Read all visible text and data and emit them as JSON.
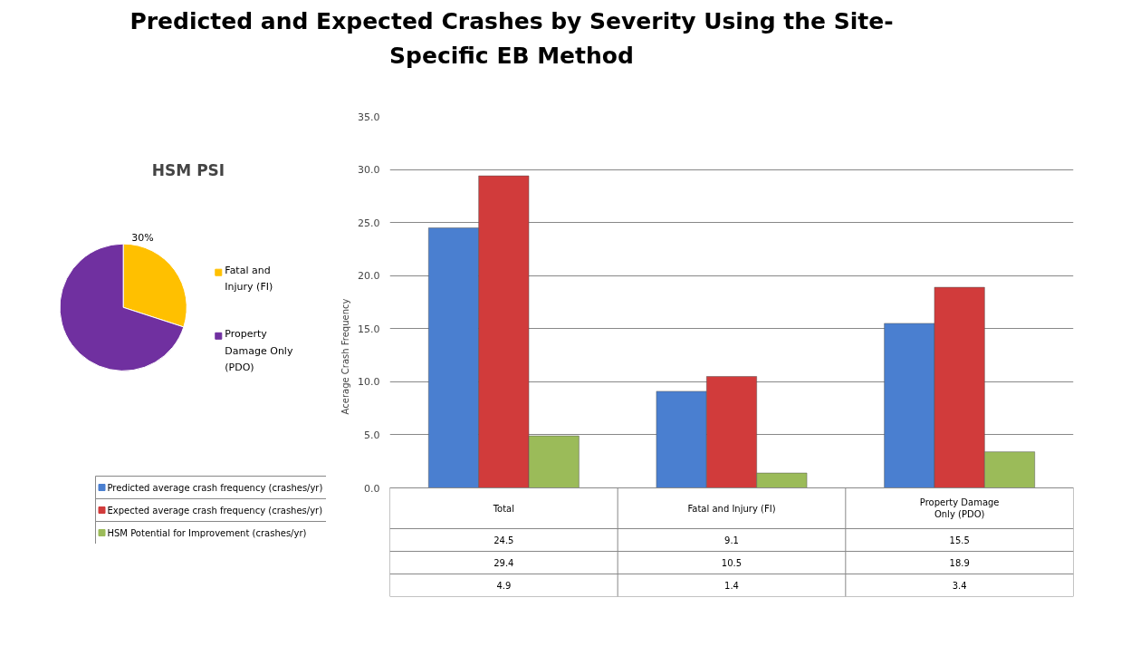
{
  "chart_data": [
    {
      "type": "pie",
      "title": "HSM PSI",
      "categories": [
        "Fatal and Injury (FI)",
        "Property Damage Only (PDO)"
      ],
      "values": [
        30,
        70
      ],
      "colors": [
        "#ffc000",
        "#7030a0"
      ],
      "value_labels": [
        "30%",
        null
      ],
      "legend": "right"
    },
    {
      "type": "bar",
      "title": "Predicted and Expected Crashes by Severity Using the Site-Specific EB Method",
      "ylabel": "Acerage Crash Frequency",
      "categories": [
        "Total",
        "Fatal and Injury (FI)",
        "Property Damage Only (PDO)"
      ],
      "series": [
        {
          "name": "Predicted average crash frequency (crashes/yr)",
          "color": "#4a7fd0",
          "values": [
            24.5,
            9.1,
            15.5
          ]
        },
        {
          "name": "Expected average crash frequency (crashes/yr)",
          "color": "#d13b3b",
          "values": [
            29.4,
            10.5,
            18.9
          ]
        },
        {
          "name": "HSM Potential for Improvement (crashes/yr)",
          "color": "#9bbb59",
          "values": [
            4.9,
            1.4,
            3.4
          ]
        }
      ],
      "ylim": [
        0,
        35
      ],
      "yticks": [
        {
          "value": 0,
          "label": "0.0"
        },
        {
          "value": 5,
          "label": "5.0"
        },
        {
          "value": 10,
          "label": "10.0"
        },
        {
          "value": 15,
          "label": "15.0"
        },
        {
          "value": 20,
          "label": "20.0"
        },
        {
          "value": 25,
          "label": "25.0"
        },
        {
          "value": 30,
          "label": "30.0"
        },
        {
          "value": 35,
          "label": "35.0"
        }
      ],
      "grid": "y",
      "data_labels": true,
      "legend": "bottom"
    }
  ]
}
